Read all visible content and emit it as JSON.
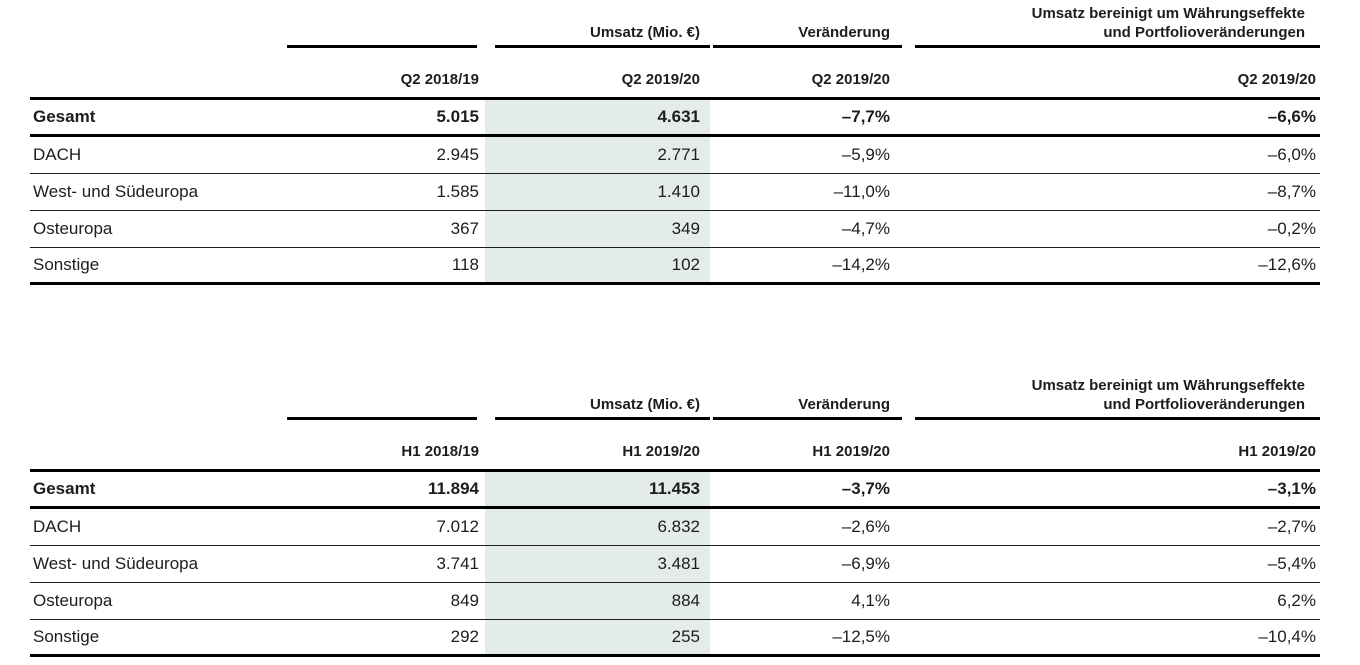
{
  "colors": {
    "highlight_column": "#e3ece6",
    "text": "#1d1d1b",
    "rule": "#000000"
  },
  "table_q2": {
    "group_headers": {
      "umsatz": "Umsatz (Mio. €)",
      "veraenderung": "Veränderung",
      "bereinigt_line1": "Umsatz bereinigt um Währungseffekte",
      "bereinigt_line2": "und Portfolioveränderungen"
    },
    "period_headers": [
      "Q2 2018/19",
      "Q2 2019/20",
      "Q2 2019/20",
      "Q2 2019/20"
    ],
    "rows": [
      {
        "label": "Gesamt",
        "prev": "5.015",
        "curr": "4.631",
        "change": "–7,7%",
        "adjusted": "–6,6%"
      },
      {
        "label": "DACH",
        "prev": "2.945",
        "curr": "2.771",
        "change": "–5,9%",
        "adjusted": "–6,0%"
      },
      {
        "label": "West- und Südeuropa",
        "prev": "1.585",
        "curr": "1.410",
        "change": "–11,0%",
        "adjusted": "–8,7%"
      },
      {
        "label": "Osteuropa",
        "prev": "367",
        "curr": "349",
        "change": "–4,7%",
        "adjusted": "–0,2%"
      },
      {
        "label": "Sonstige",
        "prev": "118",
        "curr": "102",
        "change": "–14,2%",
        "adjusted": "–12,6%"
      }
    ]
  },
  "table_h1": {
    "group_headers": {
      "umsatz": "Umsatz (Mio. €)",
      "veraenderung": "Veränderung",
      "bereinigt_line1": "Umsatz bereinigt um Währungseffekte",
      "bereinigt_line2": "und Portfolioveränderungen"
    },
    "period_headers": [
      "H1 2018/19",
      "H1 2019/20",
      "H1 2019/20",
      "H1 2019/20"
    ],
    "rows": [
      {
        "label": "Gesamt",
        "prev": "11.894",
        "curr": "11.453",
        "change": "–3,7%",
        "adjusted": "–3,1%"
      },
      {
        "label": "DACH",
        "prev": "7.012",
        "curr": "6.832",
        "change": "–2,6%",
        "adjusted": "–2,7%"
      },
      {
        "label": "West- und Südeuropa",
        "prev": "3.741",
        "curr": "3.481",
        "change": "–6,9%",
        "adjusted": "–5,4%"
      },
      {
        "label": "Osteuropa",
        "prev": "849",
        "curr": "884",
        "change": "4,1%",
        "adjusted": "6,2%"
      },
      {
        "label": "Sonstige",
        "prev": "292",
        "curr": "255",
        "change": "–12,5%",
        "adjusted": "–10,4%"
      }
    ]
  }
}
